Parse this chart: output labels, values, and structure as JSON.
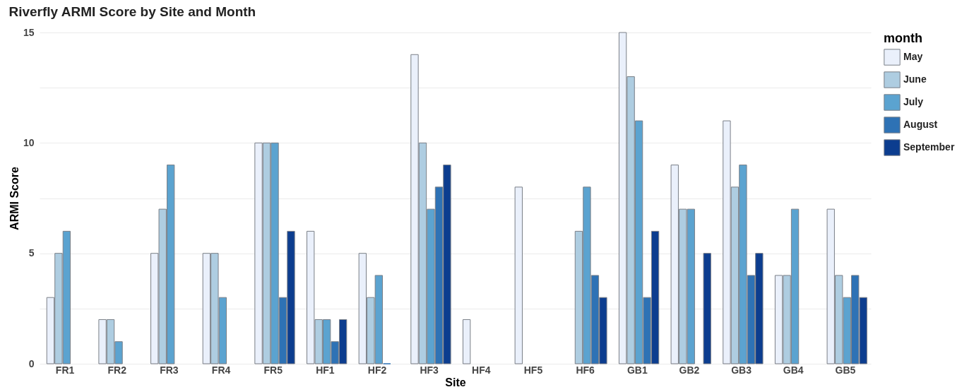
{
  "chart_data": {
    "type": "bar",
    "title": "Riverfly ARMI Score by Site and Month",
    "xlabel": "Site",
    "ylabel": "ARMI Score",
    "legend_title": "month",
    "legend": "right",
    "grid": "y",
    "categories": [
      "FR1",
      "FR2",
      "FR3",
      "FR4",
      "FR5",
      "HF1",
      "HF2",
      "HF3",
      "HF4",
      "HF5",
      "HF6",
      "GB1",
      "GB2",
      "GB3",
      "GB4",
      "GB5"
    ],
    "ylim": [
      0,
      15
    ],
    "yticks": [
      0,
      {
        "value": 2.5,
        "label": null
      },
      5,
      {
        "value": 7.5,
        "label": null
      },
      10,
      {
        "value": 12.5,
        "label": null
      },
      15
    ],
    "series": [
      {
        "name": "May",
        "color": "#eaf0fb",
        "values": [
          3,
          2,
          5,
          5,
          10,
          6,
          5,
          14,
          2,
          8,
          null,
          15,
          9,
          11,
          4,
          7
        ]
      },
      {
        "name": "June",
        "color": "#aecde1",
        "values": [
          5,
          2,
          7,
          5,
          10,
          2,
          3,
          10,
          null,
          null,
          6,
          13,
          7,
          8,
          4,
          4
        ]
      },
      {
        "name": "July",
        "color": "#5ba3d0",
        "values": [
          6,
          1,
          9,
          3,
          10,
          2,
          4,
          7,
          null,
          null,
          8,
          11,
          7,
          9,
          7,
          3
        ]
      },
      {
        "name": "August",
        "color": "#2e72b5",
        "values": [
          null,
          null,
          null,
          null,
          3,
          1,
          0,
          8,
          null,
          null,
          4,
          3,
          null,
          4,
          null,
          4
        ]
      },
      {
        "name": "September",
        "color": "#0c3d8f",
        "values": [
          null,
          null,
          null,
          null,
          6,
          2,
          null,
          9,
          null,
          null,
          3,
          6,
          5,
          5,
          null,
          3
        ]
      }
    ]
  }
}
